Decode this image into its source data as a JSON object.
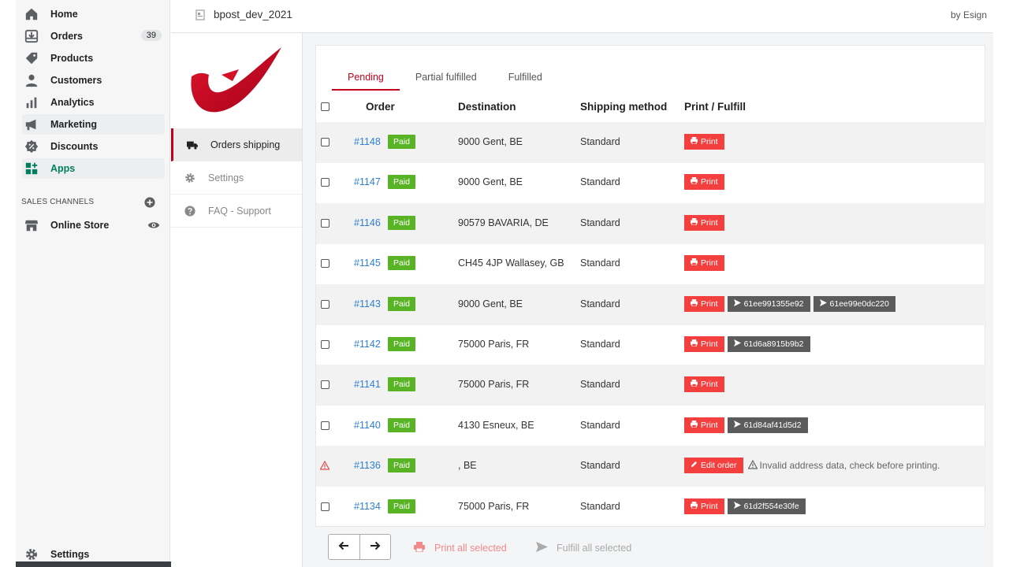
{
  "sidebar": {
    "items": [
      {
        "label": "Home",
        "icon": "home-icon"
      },
      {
        "label": "Orders",
        "icon": "orders-icon",
        "badge": "39"
      },
      {
        "label": "Products",
        "icon": "tag-icon"
      },
      {
        "label": "Customers",
        "icon": "person-icon"
      },
      {
        "label": "Analytics",
        "icon": "bar-chart-icon"
      },
      {
        "label": "Marketing",
        "icon": "megaphone-icon"
      },
      {
        "label": "Discounts",
        "icon": "discount-icon"
      },
      {
        "label": "Apps",
        "icon": "apps-icon"
      }
    ],
    "channels_title": "SALES CHANNELS",
    "online_store": "Online Store",
    "settings": "Settings"
  },
  "topbar": {
    "title": "bpost_dev_2021",
    "by": "by Esign"
  },
  "app_nav": {
    "orders_shipping": "Orders shipping",
    "settings": "Settings",
    "faq": "FAQ - Support"
  },
  "tabs": [
    "Pending",
    "Partial fulfilled",
    "Fulfilled"
  ],
  "table": {
    "headers": {
      "order": "Order",
      "destination": "Destination",
      "shipping": "Shipping method",
      "print": "Print / Fulfill"
    },
    "paid_label": "Paid",
    "print_label": "Print",
    "edit_label": "Edit order",
    "rows": [
      {
        "order": "#1148",
        "destination": "9000 Gent, BE",
        "shipping": "Standard",
        "tracking": []
      },
      {
        "order": "#1147",
        "destination": "9000 Gent, BE",
        "shipping": "Standard",
        "tracking": []
      },
      {
        "order": "#1146",
        "destination": "90579 BAVARIA, DE",
        "shipping": "Standard",
        "tracking": []
      },
      {
        "order": "#1145",
        "destination": "CH45 4JP Wallasey, GB",
        "shipping": "Standard",
        "tracking": []
      },
      {
        "order": "#1143",
        "destination": "9000 Gent, BE",
        "shipping": "Standard",
        "tracking": [
          "61ee991355e92",
          "61ee99e0dc220"
        ]
      },
      {
        "order": "#1142",
        "destination": "75000 Paris, FR",
        "shipping": "Standard",
        "tracking": [
          "61d6a8915b9b2"
        ]
      },
      {
        "order": "#1141",
        "destination": "75000 Paris, FR",
        "shipping": "Standard",
        "tracking": []
      },
      {
        "order": "#1140",
        "destination": "4130 Esneux, BE",
        "shipping": "Standard",
        "tracking": [
          "61d84af41d5d2"
        ]
      },
      {
        "order": "#1136",
        "destination": ", BE",
        "shipping": "Standard",
        "tracking": [],
        "invalid": true,
        "message": "Invalid address data, check before printing."
      },
      {
        "order": "#1134",
        "destination": "75000 Paris, FR",
        "shipping": "Standard",
        "tracking": [
          "61d2f554e30fe"
        ]
      }
    ]
  },
  "bulk": {
    "print_all": "Print all selected",
    "fulfill_all": "Fulfill all selected"
  },
  "colors": {
    "bpost_red": "#c4001f",
    "print_red": "#f43f3f",
    "paid_green": "#58b424",
    "link_blue": "#2d7fd2",
    "apps_green": "#007f5f"
  }
}
